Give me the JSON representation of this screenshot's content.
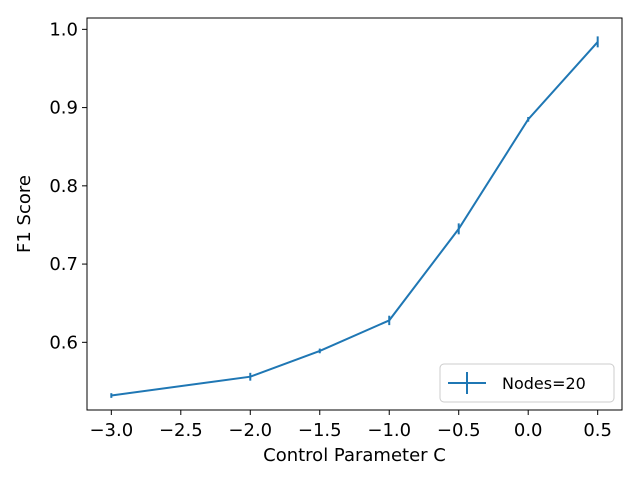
{
  "chart_data": {
    "type": "line",
    "title": "",
    "xlabel": "Control Parameter C",
    "ylabel": "F1 Score",
    "xlim": [
      -3.175,
      0.675
    ],
    "ylim": [
      0.5135,
      1.0145
    ],
    "xticks": [
      -3.0,
      -2.5,
      -2.0,
      -1.5,
      -1.0,
      -0.5,
      0.0,
      0.5
    ],
    "xtick_labels": [
      "−3.0",
      "−2.5",
      "−2.0",
      "−1.5",
      "−1.0",
      "−0.5",
      "0.0",
      "0.5"
    ],
    "yticks": [
      0.6,
      0.7,
      0.8,
      0.9,
      1.0
    ],
    "ytick_labels": [
      "0.6",
      "0.7",
      "0.8",
      "0.9",
      "1.0"
    ],
    "grid": false,
    "legend_position": "lower-right",
    "series": [
      {
        "name": "Nodes=20",
        "color": "#1f77b4",
        "x": [
          -3.0,
          -2.0,
          -1.5,
          -1.0,
          -0.5,
          0.0,
          0.5
        ],
        "y": [
          0.532,
          0.556,
          0.589,
          0.628,
          0.745,
          0.885,
          0.984
        ],
        "yerr": [
          0.003,
          0.005,
          0.003,
          0.006,
          0.007,
          0.003,
          0.007
        ]
      }
    ]
  }
}
